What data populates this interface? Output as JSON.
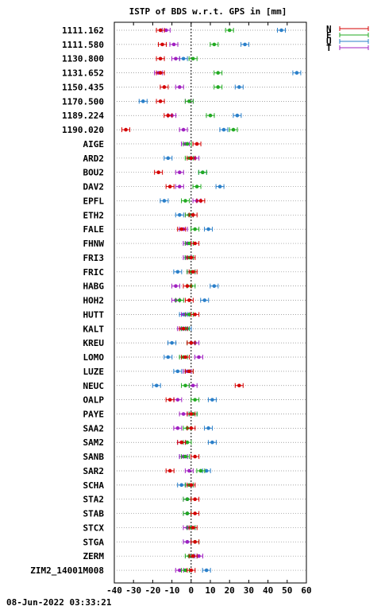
{
  "chart_data": {
    "type": "scatter",
    "title": "ISTP of BDS w.r.t. GPS in [mm]",
    "footer": "08-Jun-2022 03:33:21",
    "xlim": [
      -40,
      60
    ],
    "xticks": [
      -40,
      -30,
      -20,
      -10,
      0,
      10,
      20,
      30,
      40,
      50,
      60
    ],
    "grid": "horizontal dotted lines per station",
    "reference_line": 0,
    "legend_position": "top-right outside plot",
    "legend": [
      {
        "key": "N",
        "color": "#d40000"
      },
      {
        "key": "E",
        "color": "#22aa22"
      },
      {
        "key": "U",
        "color": "#2a7fc9"
      },
      {
        "key": "T",
        "color": "#a020c0"
      }
    ],
    "categories": [
      "1111.162",
      "1111.580",
      "1130.800",
      "1131.652",
      "1150.435",
      "1170.500",
      "1189.224",
      "1190.020",
      "AIGE",
      "ARD2",
      "BOU2",
      "DAV2",
      "EPFL",
      "ETH2",
      "FALE",
      "FHNW",
      "FRI3",
      "FRIC",
      "HABG",
      "HOH2",
      "HUTT",
      "KALT",
      "KREU",
      "LOMO",
      "LUZE",
      "NEUC",
      "OALP",
      "PAYE",
      "SAA2",
      "SAM2",
      "SANB",
      "SAR2",
      "SCHA",
      "STA2",
      "STAB",
      "STCX",
      "STGA",
      "ZERM",
      "ZIM2_14001M008"
    ],
    "series": [
      {
        "name": "N",
        "color": "#d40000",
        "values": [
          -16,
          -15,
          -16,
          -16,
          -14,
          -16,
          -12,
          -34,
          3,
          0,
          -17,
          -11,
          5,
          1,
          -5,
          2,
          0,
          1,
          -2,
          -1,
          2,
          -4,
          0,
          -3,
          -1,
          25,
          -11,
          0,
          0,
          -5,
          2,
          -11,
          0,
          2,
          2,
          1,
          2,
          1,
          0
        ]
      },
      {
        "name": "E",
        "color": "#22aa22",
        "values": [
          20,
          12,
          1,
          14,
          14,
          -1,
          10,
          22,
          -2,
          -1,
          6,
          3,
          -3,
          -1,
          2,
          -1,
          -1,
          0,
          0,
          -6,
          -1,
          -3,
          0,
          -4,
          -1,
          -3,
          2,
          1,
          -2,
          -2,
          -3,
          5,
          -1,
          -2,
          -2,
          0,
          2,
          -1,
          -3
        ]
      },
      {
        "name": "U",
        "color": "#2a7fc9",
        "values": [
          47,
          28,
          -4,
          55,
          25,
          -25,
          24,
          17,
          -2,
          -12,
          6,
          15,
          -14,
          -6,
          9,
          -2,
          -1,
          -7,
          12,
          7,
          -4,
          -2,
          -10,
          -12,
          -7,
          -18,
          11,
          1,
          9,
          11,
          -4,
          8,
          -5,
          -2,
          -2,
          0,
          -2,
          1,
          8
        ]
      },
      {
        "name": "T",
        "color": "#a020c0",
        "values": [
          -13,
          -9,
          -8,
          -17,
          -6,
          -1,
          -10,
          -4,
          -3,
          2,
          -6,
          -6,
          3,
          -1,
          -4,
          -2,
          -2,
          0,
          -8,
          -8,
          -3,
          -5,
          2,
          4,
          -2,
          1,
          -7,
          -4,
          -7,
          -5,
          -4,
          -1,
          -1,
          -2,
          -2,
          -2,
          -2,
          4,
          -6
        ]
      }
    ]
  }
}
